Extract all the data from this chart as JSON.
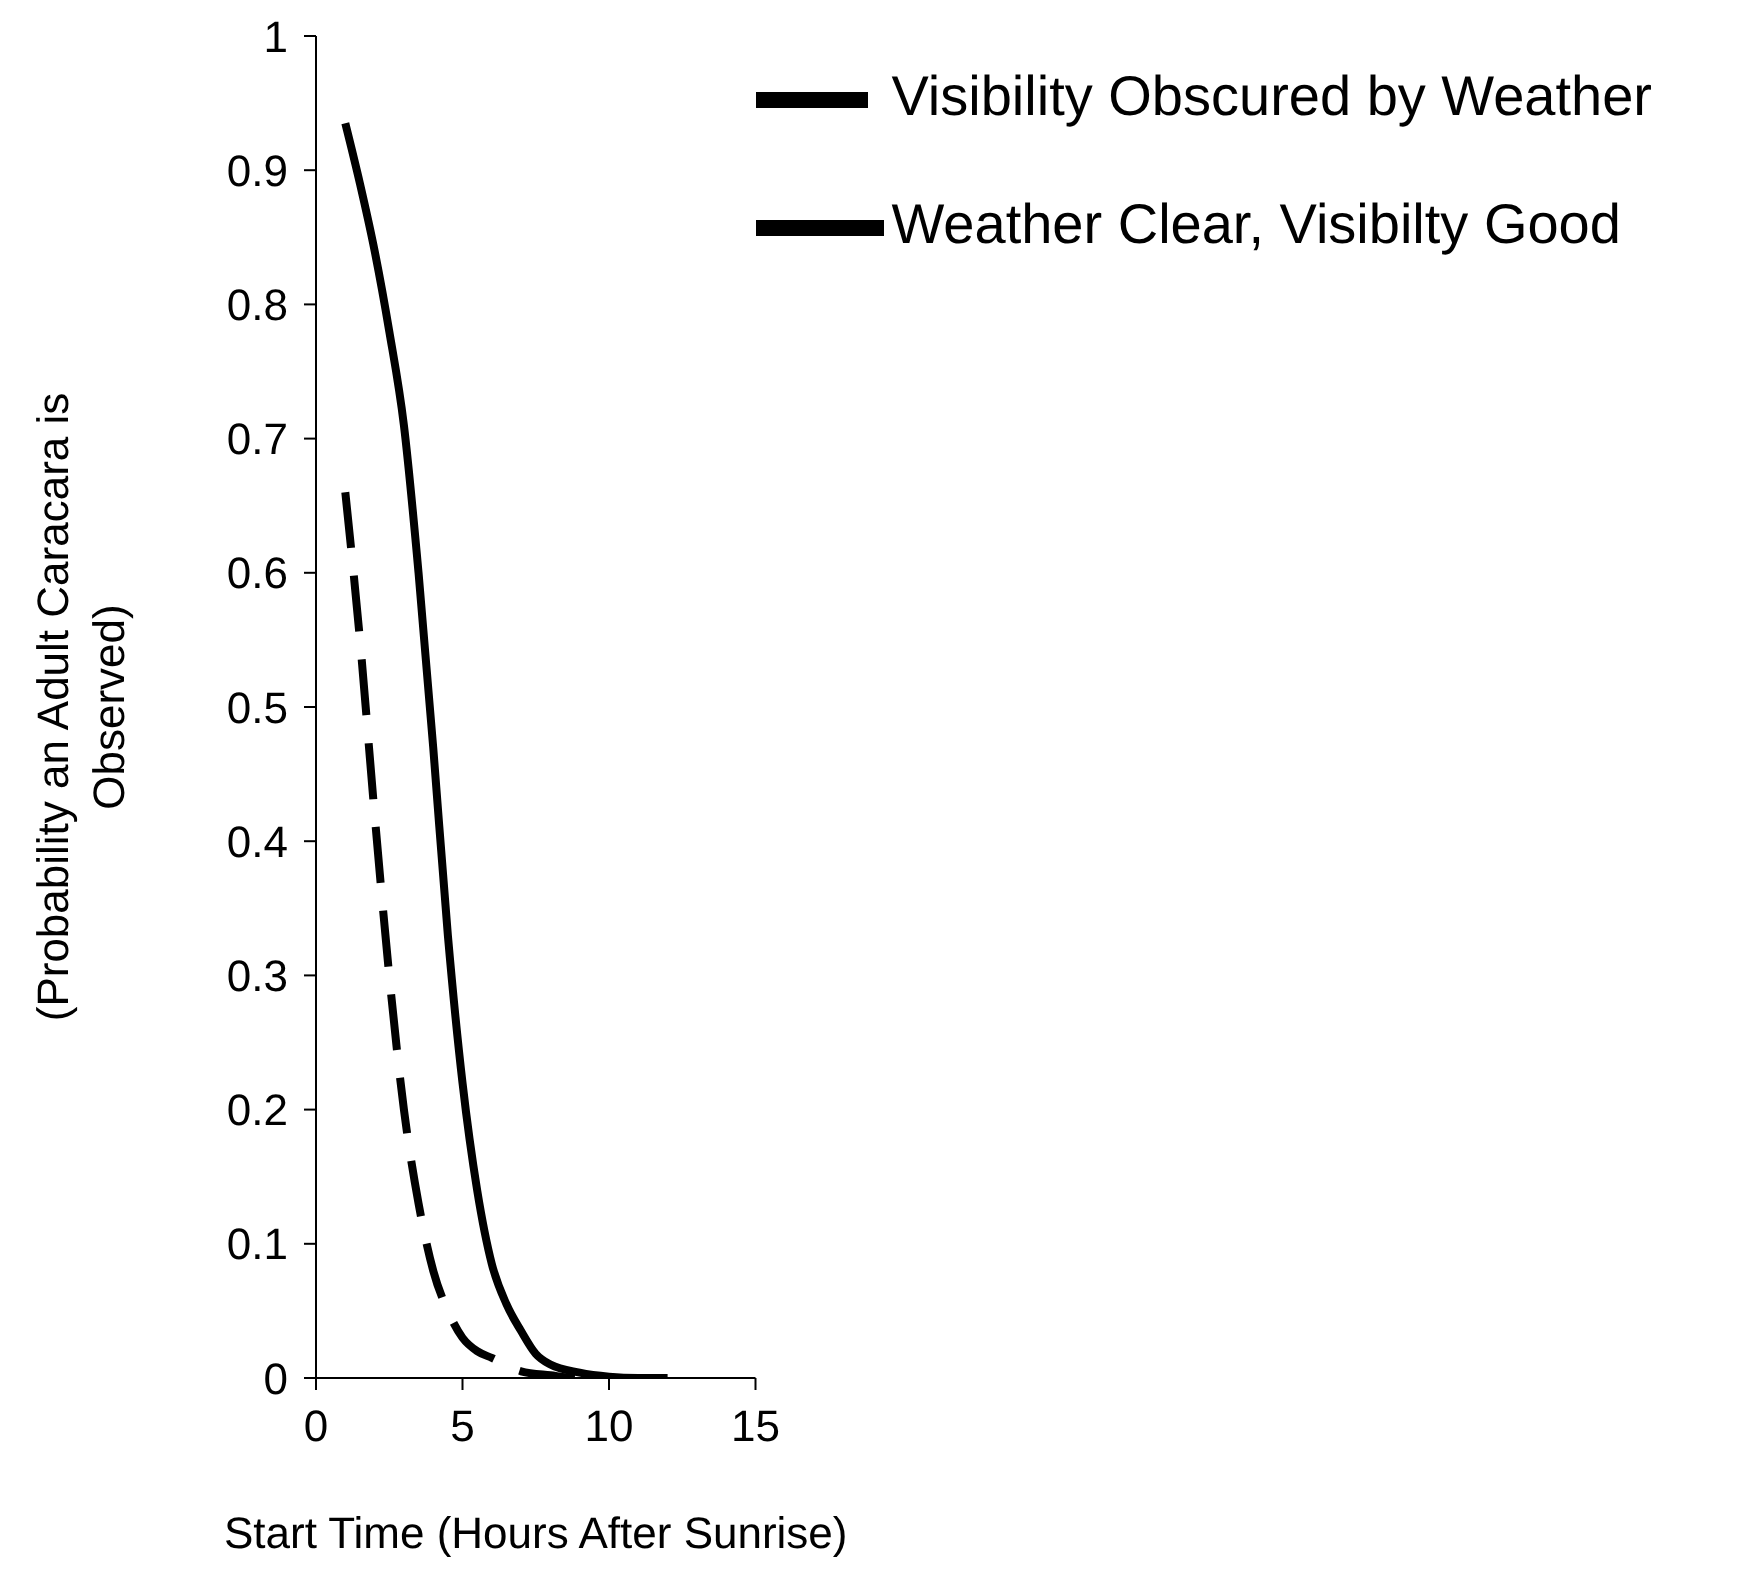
{
  "chart_data": {
    "type": "line",
    "xlabel": "Start Time (Hours After Sunrise)",
    "ylabel": "(Probability an Adult Caracara is Observed)",
    "xlim": [
      0,
      15
    ],
    "xticks": [
      0,
      5,
      10,
      15
    ],
    "ylim": [
      0,
      1
    ],
    "yticks": [
      0,
      0.1,
      0.2,
      0.3,
      0.4,
      0.5,
      0.6,
      0.7,
      0.8,
      0.9,
      1
    ],
    "grid": false,
    "legend": "top right",
    "marker": "none",
    "series": [
      {
        "name": "Visibility Obscured by Weather",
        "color": "#000000",
        "line_style": "dashed",
        "x": [
          1,
          1.5,
          2,
          2.5,
          3,
          3.5,
          4,
          4.5,
          5,
          5.5,
          6,
          7,
          8,
          9,
          10,
          11,
          12
        ],
        "values": [
          0.66,
          0.55,
          0.42,
          0.3,
          0.2,
          0.13,
          0.08,
          0.05,
          0.03,
          0.02,
          0.015,
          0.005,
          0.002,
          0,
          0,
          0,
          0
        ]
      },
      {
        "name": "Weather Clear, Visibilty Good",
        "color": "#000000",
        "line_style": "solid",
        "x": [
          1,
          1.5,
          2,
          2.5,
          3,
          3.5,
          4,
          4.5,
          5,
          5.5,
          6,
          6.5,
          7,
          7.5,
          8,
          9,
          10,
          11,
          12
        ],
        "values": [
          0.935,
          0.89,
          0.84,
          0.78,
          0.71,
          0.6,
          0.47,
          0.33,
          0.22,
          0.14,
          0.085,
          0.055,
          0.035,
          0.018,
          0.01,
          0.004,
          0.001,
          0,
          0
        ]
      }
    ]
  }
}
